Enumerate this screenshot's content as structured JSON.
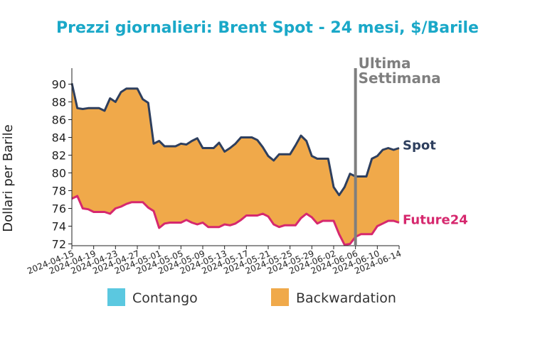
{
  "chart_data": {
    "type": "area",
    "title": "Prezzi giornalieri: Brent Spot - 24 mesi, $/Barile",
    "ylabel": "Dollari per Barile",
    "xlabel": "",
    "ylim": [
      71.8,
      91.8
    ],
    "yticks": [
      72,
      74,
      76,
      78,
      80,
      82,
      84,
      86,
      88,
      90
    ],
    "x_start": "2024-04-15",
    "xticks": [
      "2024-04-15",
      "2024-04-19",
      "2024-04-23",
      "2024-04-27",
      "2024-05-01",
      "2024-05-05",
      "2024-05-09",
      "2024-05-13",
      "2024-05-17",
      "2024-05-21",
      "2024-05-25",
      "2024-05-29",
      "2024-06-02",
      "2024-06-06",
      "2024-06-10",
      "2024-06-14"
    ],
    "x": [
      "2024-04-15",
      "2024-04-16",
      "2024-04-17",
      "2024-04-18",
      "2024-04-19",
      "2024-04-20",
      "2024-04-21",
      "2024-04-22",
      "2024-04-23",
      "2024-04-24",
      "2024-04-25",
      "2024-04-26",
      "2024-04-27",
      "2024-04-28",
      "2024-04-29",
      "2024-04-30",
      "2024-05-01",
      "2024-05-02",
      "2024-05-03",
      "2024-05-04",
      "2024-05-05",
      "2024-05-06",
      "2024-05-07",
      "2024-05-08",
      "2024-05-09",
      "2024-05-10",
      "2024-05-11",
      "2024-05-12",
      "2024-05-13",
      "2024-05-14",
      "2024-05-15",
      "2024-05-16",
      "2024-05-17",
      "2024-05-18",
      "2024-05-19",
      "2024-05-20",
      "2024-05-21",
      "2024-05-22",
      "2024-05-23",
      "2024-05-24",
      "2024-05-25",
      "2024-05-26",
      "2024-05-27",
      "2024-05-28",
      "2024-05-29",
      "2024-05-30",
      "2024-05-31",
      "2024-06-01",
      "2024-06-02",
      "2024-06-03",
      "2024-06-04",
      "2024-06-05",
      "2024-06-06",
      "2024-06-07",
      "2024-06-08",
      "2024-06-09",
      "2024-06-10",
      "2024-06-11",
      "2024-06-12",
      "2024-06-13",
      "2024-06-14"
    ],
    "series": [
      {
        "name": "Spot",
        "color": "#2e3f5e",
        "values": [
          90.1,
          87.3,
          87.2,
          87.3,
          87.3,
          87.3,
          87.0,
          88.4,
          88.0,
          89.1,
          89.5,
          89.5,
          89.5,
          88.3,
          87.9,
          83.3,
          83.6,
          83.0,
          83.0,
          83.0,
          83.3,
          83.2,
          83.6,
          83.9,
          82.8,
          82.8,
          82.8,
          83.4,
          82.4,
          82.8,
          83.3,
          84.0,
          84.0,
          84.0,
          83.7,
          82.9,
          81.9,
          81.4,
          82.1,
          82.1,
          82.1,
          83.1,
          84.2,
          83.6,
          81.9,
          81.6,
          81.6,
          81.6,
          78.4,
          77.5,
          78.4,
          79.9,
          79.6,
          79.6,
          79.6,
          81.6,
          81.9,
          82.6,
          82.8,
          82.6,
          82.8
        ]
      },
      {
        "name": "Future24",
        "color": "#d6286e",
        "values": [
          77.1,
          77.4,
          76.0,
          75.9,
          75.6,
          75.6,
          75.6,
          75.4,
          76.0,
          76.2,
          76.5,
          76.7,
          76.7,
          76.7,
          76.1,
          75.7,
          73.8,
          74.3,
          74.4,
          74.4,
          74.4,
          74.7,
          74.4,
          74.2,
          74.4,
          73.9,
          73.9,
          73.9,
          74.2,
          74.1,
          74.3,
          74.7,
          75.2,
          75.2,
          75.2,
          75.4,
          75.1,
          74.2,
          73.9,
          74.1,
          74.1,
          74.1,
          74.9,
          75.4,
          75.0,
          74.3,
          74.6,
          74.6,
          74.6,
          73.1,
          71.9,
          72.0,
          72.8,
          73.1,
          73.1,
          73.1,
          74.0,
          74.3,
          74.6,
          74.6,
          74.4
        ]
      }
    ],
    "vline": {
      "x": "2024-06-06",
      "label": "Ultima\nSettimana",
      "color": "#7f7f7f"
    },
    "legend": {
      "position": "bottom",
      "items": [
        {
          "label": "Contango",
          "color": "#5bc8e0"
        },
        {
          "label": "Backwardation",
          "color": "#f0a94a"
        }
      ]
    },
    "grid": false
  }
}
